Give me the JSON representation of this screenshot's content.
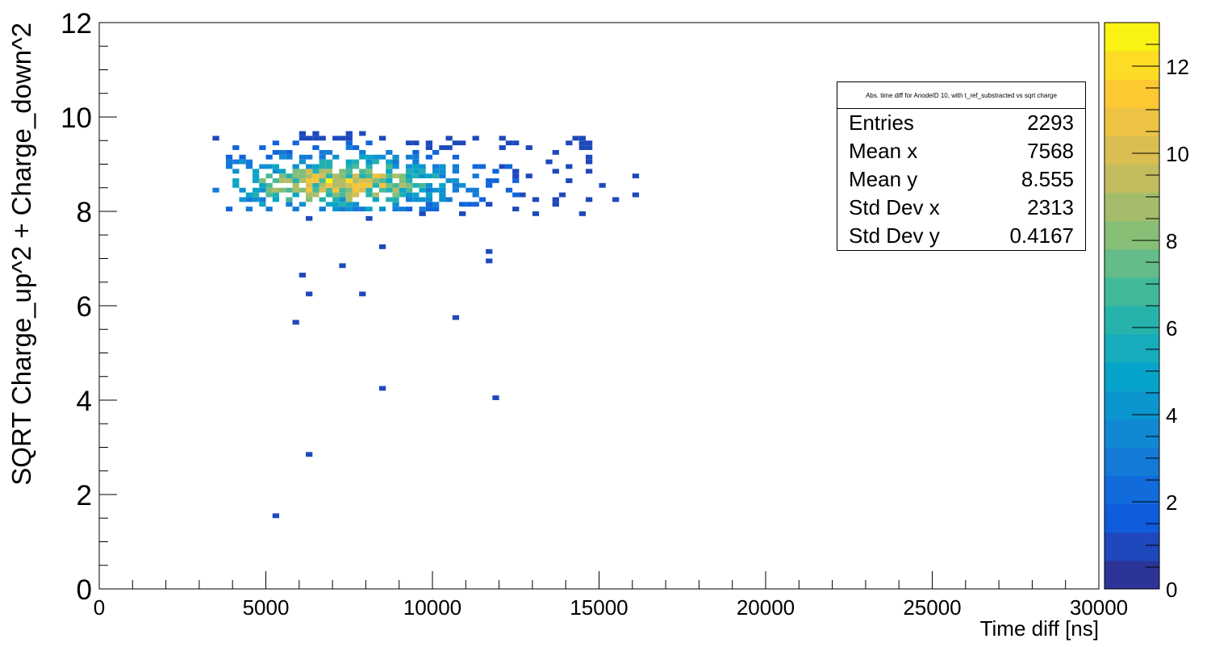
{
  "chart_data": {
    "type": "heatmap",
    "xlabel": "Time diff [ns]",
    "ylabel": "SQRT Charge_up^2 + Charge_down^2",
    "xlim": [
      0,
      30000
    ],
    "ylim": [
      0,
      12
    ],
    "x_ticks": [
      "0",
      "5000",
      "10000",
      "15000",
      "20000",
      "25000",
      "30000"
    ],
    "y_ticks": [
      "0",
      "2",
      "4",
      "6",
      "8",
      "10",
      "12"
    ],
    "z_range": [
      0,
      13
    ],
    "z_ticks": [
      "0",
      "2",
      "4",
      "6",
      "8",
      "10",
      "12"
    ],
    "bin_size": {
      "x": 200,
      "y": 0.1
    },
    "palette": "parula",
    "colors": [
      "#352a87",
      "#0f5cdd",
      "#1481d6",
      "#06a4ca",
      "#2eb7a4",
      "#87bf77",
      "#d1bb59",
      "#fec832",
      "#f9fb0e"
    ],
    "stats": {
      "title": "Abs. time diff for AnodeID 10, with t_ref_substracted vs sqrt charge",
      "rows": [
        {
          "label": "Entries",
          "value": "2293"
        },
        {
          "label": "Mean x",
          "value": "7568"
        },
        {
          "label": "Mean y",
          "value": "8.555"
        },
        {
          "label": "Std Dev x",
          "value": "2313"
        },
        {
          "label": "Std Dev y",
          "value": "0.4167"
        }
      ]
    },
    "outliers": [
      [
        16000,
        8.7,
        1
      ],
      [
        16000,
        8.3,
        1
      ],
      [
        15000,
        8.5,
        1
      ],
      [
        15400,
        8.2,
        1
      ],
      [
        14400,
        9.5,
        1
      ],
      [
        14400,
        7.9,
        1
      ],
      [
        13000,
        7.9,
        1
      ],
      [
        11600,
        7.1,
        1
      ],
      [
        11600,
        6.9,
        1
      ],
      [
        8400,
        7.2,
        1
      ],
      [
        7200,
        6.8,
        1
      ],
      [
        6000,
        6.6,
        1
      ],
      [
        6200,
        6.2,
        1
      ],
      [
        7800,
        6.2,
        1
      ],
      [
        5800,
        5.6,
        1
      ],
      [
        10600,
        5.7,
        1
      ],
      [
        8400,
        4.2,
        1
      ],
      [
        11800,
        4.0,
        1
      ],
      [
        6200,
        2.8,
        1
      ],
      [
        5200,
        1.5,
        1
      ],
      [
        6000,
        9.6,
        1
      ],
      [
        6400,
        9.6,
        1
      ],
      [
        3400,
        9.5,
        1
      ],
      [
        7400,
        9.6,
        1
      ],
      [
        7800,
        9.6,
        1
      ],
      [
        7200,
        9.5,
        1
      ],
      [
        12400,
        8.0,
        1
      ],
      [
        13600,
        8.2,
        1
      ],
      [
        6200,
        7.8,
        1
      ],
      [
        8000,
        7.8,
        1
      ],
      [
        9600,
        7.9,
        1
      ],
      [
        10800,
        7.9,
        1
      ]
    ]
  }
}
